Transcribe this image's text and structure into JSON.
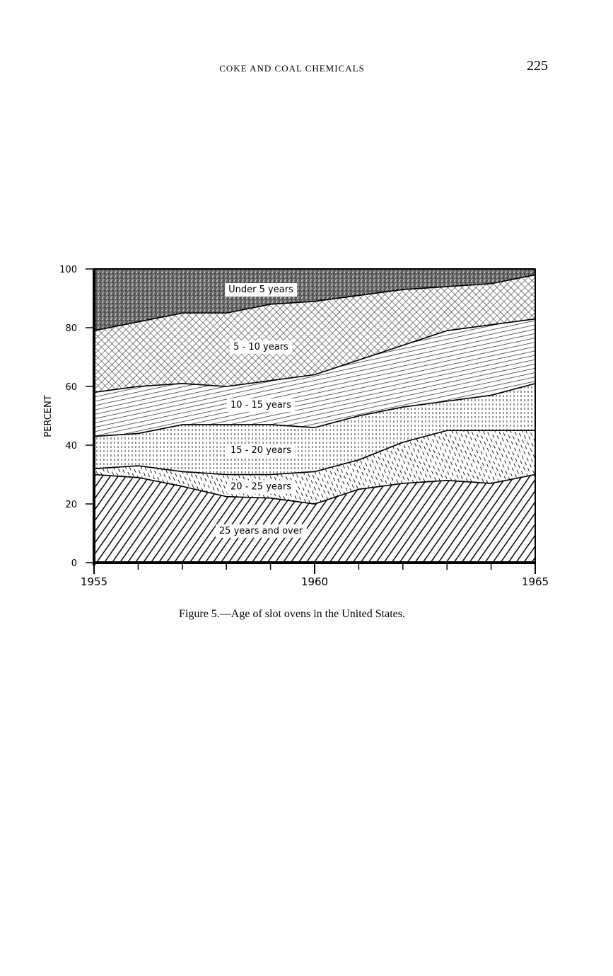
{
  "header": {
    "title": "COKE AND COAL CHEMICALS",
    "page_number": "225"
  },
  "chart_data": {
    "type": "stacked-area",
    "caption": "Figure 5.—Age of slot ovens in the United States.",
    "y_label": "PERCENT",
    "x": [
      1955,
      1956,
      1957,
      1958,
      1959,
      1960,
      1961,
      1962,
      1963,
      1964,
      1965
    ],
    "xlim": [
      1955,
      1965
    ],
    "xticks": [
      1955,
      1960,
      1965
    ],
    "xminorticks": [
      1956,
      1957,
      1958,
      1959,
      1961,
      1962,
      1963,
      1964
    ],
    "ylim": [
      0,
      100
    ],
    "yticks": [
      0,
      20,
      40,
      60,
      80,
      100
    ],
    "series": [
      {
        "name": "25 years and over",
        "values": [
          30,
          29,
          26,
          22.5,
          22,
          20,
          25,
          27,
          28,
          27,
          30
        ]
      },
      {
        "name": "20 - 25 years",
        "values": [
          2,
          4,
          5,
          7.5,
          8,
          11,
          10,
          14,
          17,
          18,
          15
        ]
      },
      {
        "name": "15 - 20 years",
        "values": [
          11,
          11,
          16,
          17,
          17,
          15,
          15,
          12,
          10,
          12,
          16
        ]
      },
      {
        "name": "10 - 15 years",
        "values": [
          15,
          16,
          14,
          13,
          15,
          18,
          19,
          21,
          24,
          24,
          22
        ]
      },
      {
        "name": "5 - 10 years",
        "values": [
          21,
          22,
          24,
          25,
          26,
          25,
          22,
          19,
          15,
          14,
          15
        ]
      },
      {
        "name": "Under 5 years",
        "values": [
          21,
          18,
          15,
          15,
          12,
          11,
          9,
          7,
          6,
          5,
          2
        ]
      }
    ]
  }
}
